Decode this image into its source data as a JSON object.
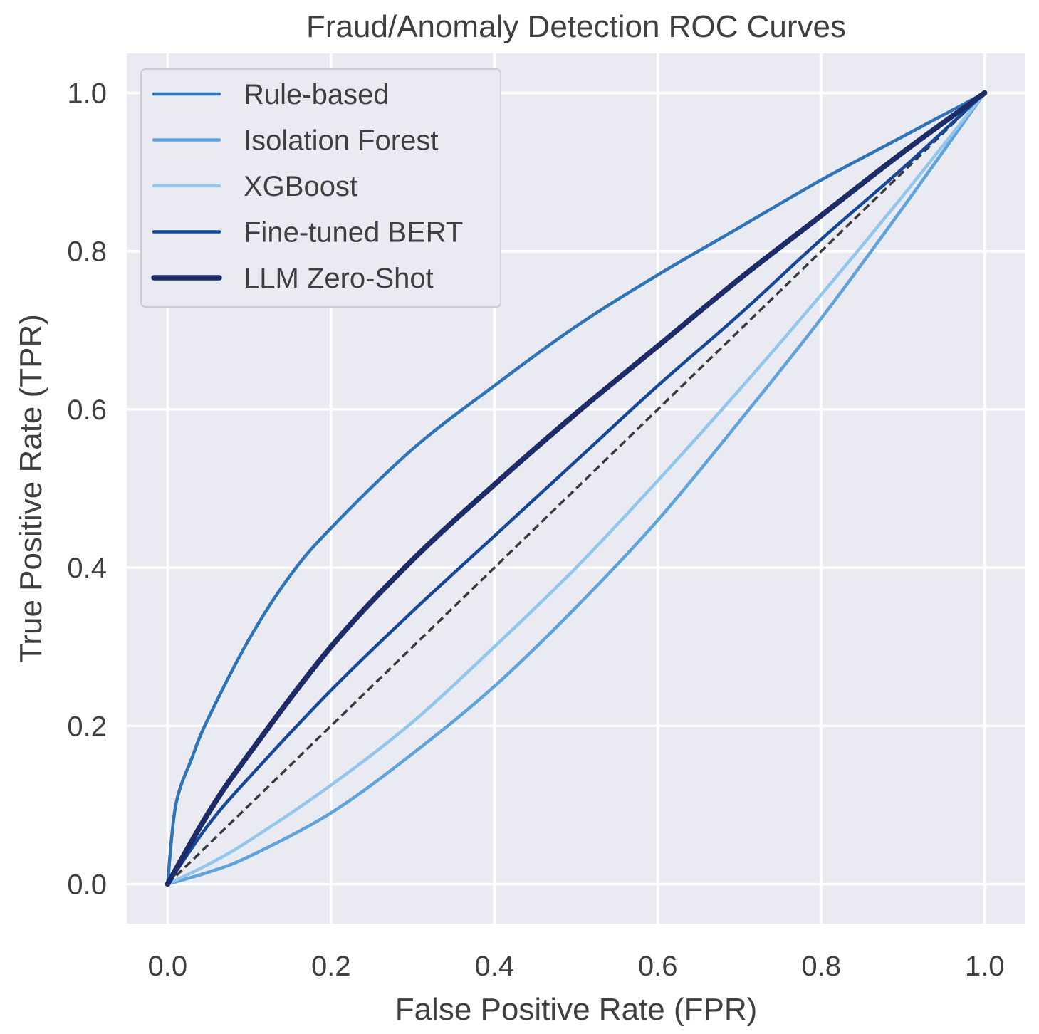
{
  "chart_data": {
    "type": "line",
    "title": "Fraud/Anomaly Detection ROC Curves",
    "xlabel": "False Positive Rate (FPR)",
    "ylabel": "True Positive Rate (TPR)",
    "xlim": [
      -0.05,
      1.05
    ],
    "ylim": [
      -0.05,
      1.05
    ],
    "xticks": [
      "0.0",
      "0.2",
      "0.4",
      "0.6",
      "0.8",
      "1.0"
    ],
    "yticks": [
      "0.0",
      "0.2",
      "0.4",
      "0.6",
      "0.8",
      "1.0"
    ],
    "grid": true,
    "legend_position": "upper-left",
    "series": [
      {
        "name": "Rule-based",
        "color": "#2f74b8",
        "x": [
          0,
          0.01,
          0.03,
          0.05,
          0.1,
          0.15,
          0.2,
          0.3,
          0.4,
          0.5,
          0.6,
          0.7,
          0.8,
          0.9,
          1.0
        ],
        "y": [
          0,
          0.1,
          0.16,
          0.21,
          0.31,
          0.39,
          0.45,
          0.55,
          0.63,
          0.705,
          0.77,
          0.83,
          0.89,
          0.945,
          1.0
        ]
      },
      {
        "name": "Isolation Forest",
        "color": "#5ea3dc",
        "x": [
          0,
          0.05,
          0.1,
          0.2,
          0.3,
          0.4,
          0.5,
          0.6,
          0.7,
          0.8,
          0.9,
          1.0
        ],
        "y": [
          0,
          0.015,
          0.035,
          0.09,
          0.165,
          0.25,
          0.35,
          0.46,
          0.585,
          0.715,
          0.855,
          1.0
        ]
      },
      {
        "name": "XGBoost",
        "color": "#92c6ec",
        "x": [
          0,
          0.05,
          0.1,
          0.2,
          0.3,
          0.4,
          0.5,
          0.6,
          0.7,
          0.8,
          0.9,
          1.0
        ],
        "y": [
          0,
          0.025,
          0.055,
          0.125,
          0.205,
          0.3,
          0.4,
          0.51,
          0.625,
          0.745,
          0.87,
          1.0
        ]
      },
      {
        "name": "Fine-tuned BERT",
        "color": "#15479a",
        "x": [
          0,
          0.05,
          0.1,
          0.2,
          0.3,
          0.4,
          0.5,
          0.6,
          0.7,
          0.8,
          0.9,
          1.0
        ],
        "y": [
          0,
          0.075,
          0.135,
          0.245,
          0.345,
          0.44,
          0.535,
          0.63,
          0.72,
          0.815,
          0.905,
          1.0
        ]
      },
      {
        "name": "LLM Zero-Shot",
        "color": "#1d2c68",
        "x": [
          0,
          0.05,
          0.1,
          0.2,
          0.3,
          0.4,
          0.5,
          0.6,
          0.7,
          0.8,
          0.9,
          1.0
        ],
        "y": [
          0,
          0.09,
          0.165,
          0.3,
          0.41,
          0.505,
          0.595,
          0.68,
          0.765,
          0.845,
          0.925,
          1.0
        ]
      }
    ],
    "reference_line": {
      "x": [
        0,
        1
      ],
      "y": [
        0,
        1
      ],
      "color": "#3a3a3a",
      "style": "dashed"
    }
  }
}
